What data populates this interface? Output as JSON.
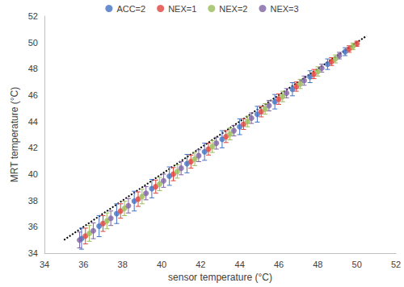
{
  "chart_data": {
    "type": "scatter",
    "x_label": "sensor temperature (°C)",
    "y_label": "MRT temperature (°C)",
    "xlim": [
      34,
      52
    ],
    "xticks": [
      34,
      36,
      38,
      40,
      42,
      44,
      46,
      48,
      50,
      52
    ],
    "ylim": [
      34,
      52
    ],
    "yticks": [
      34,
      36,
      38,
      40,
      42,
      44,
      46,
      48,
      50,
      52
    ],
    "grid": false,
    "legend": "top",
    "marker": "circle",
    "series": [
      {
        "name": "ACC=2",
        "color": "#4472c4",
        "x": [
          35.9,
          36.8,
          37.7,
          38.6,
          39.5,
          40.4,
          41.3,
          42.2,
          43.1,
          44.0,
          44.9,
          45.8,
          46.7,
          47.6,
          48.5,
          49.4
        ],
        "values": [
          35.1,
          36.05,
          37.0,
          37.95,
          38.9,
          39.85,
          40.8,
          41.7,
          42.65,
          43.6,
          44.55,
          45.5,
          46.45,
          47.4,
          48.35,
          49.3
        ],
        "error": [
          0.8,
          0.8,
          0.75,
          0.75,
          0.7,
          0.7,
          0.7,
          0.65,
          0.65,
          0.6,
          0.6,
          0.55,
          0.5,
          0.45,
          0.4,
          0.3
        ]
      },
      {
        "name": "NEX=1",
        "color": "#e0443c",
        "x": [
          36.1,
          37.0,
          37.9,
          38.8,
          39.7,
          40.6,
          41.5,
          42.4,
          43.3,
          44.2,
          45.1,
          46.0,
          46.9,
          47.8,
          48.7,
          49.6,
          50.0
        ],
        "values": [
          35.3,
          36.25,
          37.2,
          38.1,
          39.05,
          40.0,
          40.95,
          41.9,
          42.85,
          43.8,
          44.75,
          45.7,
          46.65,
          47.6,
          48.55,
          49.5,
          49.9
        ],
        "error": [
          0.6,
          0.6,
          0.55,
          0.55,
          0.5,
          0.5,
          0.5,
          0.45,
          0.45,
          0.4,
          0.4,
          0.4,
          0.35,
          0.35,
          0.3,
          0.25,
          0.2
        ]
      },
      {
        "name": "NEX=2",
        "color": "#9bbb59",
        "x": [
          36.3,
          37.2,
          38.1,
          39.0,
          39.9,
          40.8,
          41.7,
          42.6,
          43.5,
          44.4,
          45.3,
          46.2,
          47.1,
          48.0,
          48.9,
          49.8
        ],
        "values": [
          35.5,
          36.45,
          37.4,
          38.3,
          39.25,
          40.2,
          41.15,
          42.1,
          43.05,
          44.0,
          44.95,
          45.9,
          46.85,
          47.8,
          48.75,
          49.7
        ],
        "error": [
          0.6,
          0.6,
          0.55,
          0.55,
          0.5,
          0.5,
          0.5,
          0.45,
          0.45,
          0.4,
          0.4,
          0.4,
          0.35,
          0.35,
          0.3,
          0.25
        ]
      },
      {
        "name": "NEX=3",
        "color": "#8064a2",
        "x": [
          35.8,
          36.5,
          37.4,
          38.3,
          39.2,
          40.1,
          41.0,
          41.9,
          42.8,
          43.7,
          44.6,
          45.5,
          46.4,
          47.3,
          48.2,
          49.1
        ],
        "values": [
          35.0,
          35.7,
          36.65,
          37.6,
          38.55,
          39.5,
          40.45,
          41.4,
          42.35,
          43.3,
          44.25,
          45.2,
          46.15,
          47.1,
          48.05,
          49.0
        ],
        "error": [
          0.6,
          0.6,
          0.55,
          0.55,
          0.5,
          0.5,
          0.5,
          0.45,
          0.45,
          0.4,
          0.4,
          0.4,
          0.35,
          0.35,
          0.3,
          0.25
        ]
      }
    ],
    "reference_line": {
      "x": [
        35,
        50.5
      ],
      "values": [
        35,
        50.5
      ],
      "line_style": "dotted",
      "color": "#000000"
    }
  }
}
